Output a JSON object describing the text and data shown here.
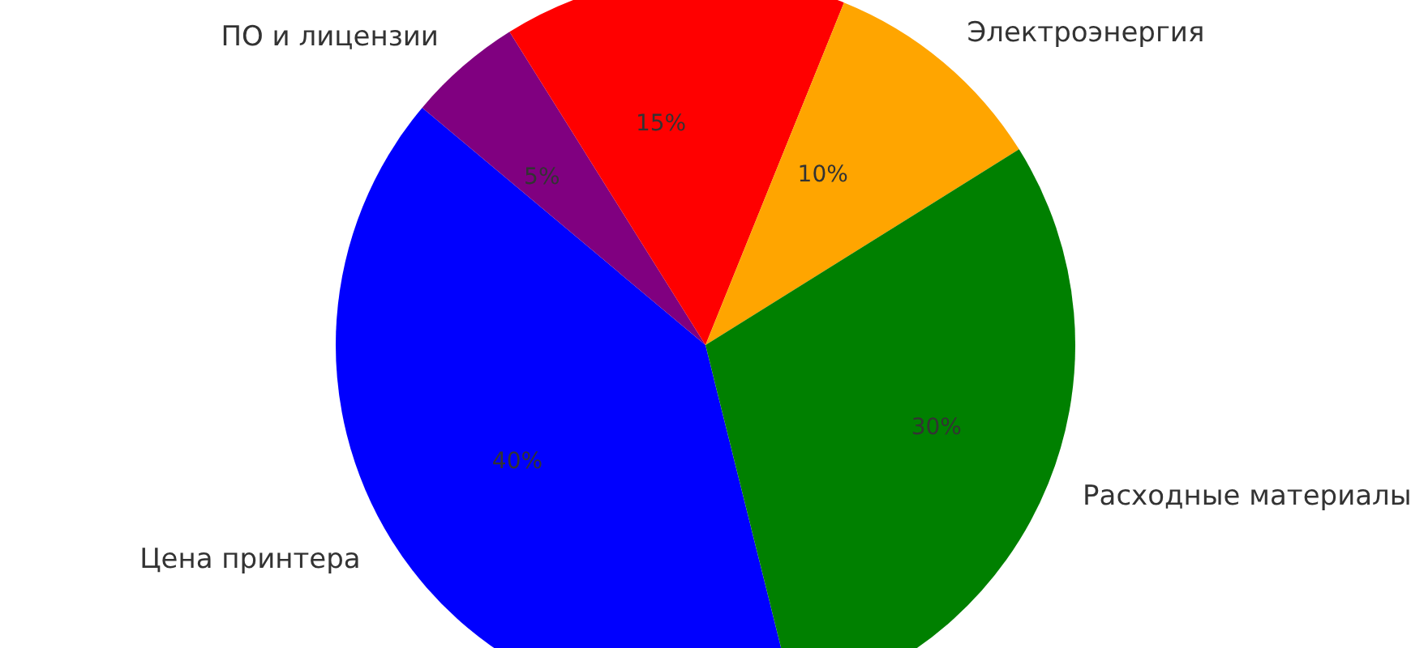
{
  "chart_data": {
    "type": "pie",
    "categories": [
      "Цена принтера",
      "ПО и лицензии",
      null,
      "Электроэнергия",
      "Расходные материалы"
    ],
    "values": [
      40,
      5,
      15,
      10,
      30
    ],
    "colors": [
      "#0000ff",
      "#800080",
      "#ff0000",
      "#ffa500",
      "#008000"
    ],
    "value_labels": [
      "40%",
      "5%",
      "15%",
      "10%",
      "30%"
    ],
    "legend": false
  }
}
